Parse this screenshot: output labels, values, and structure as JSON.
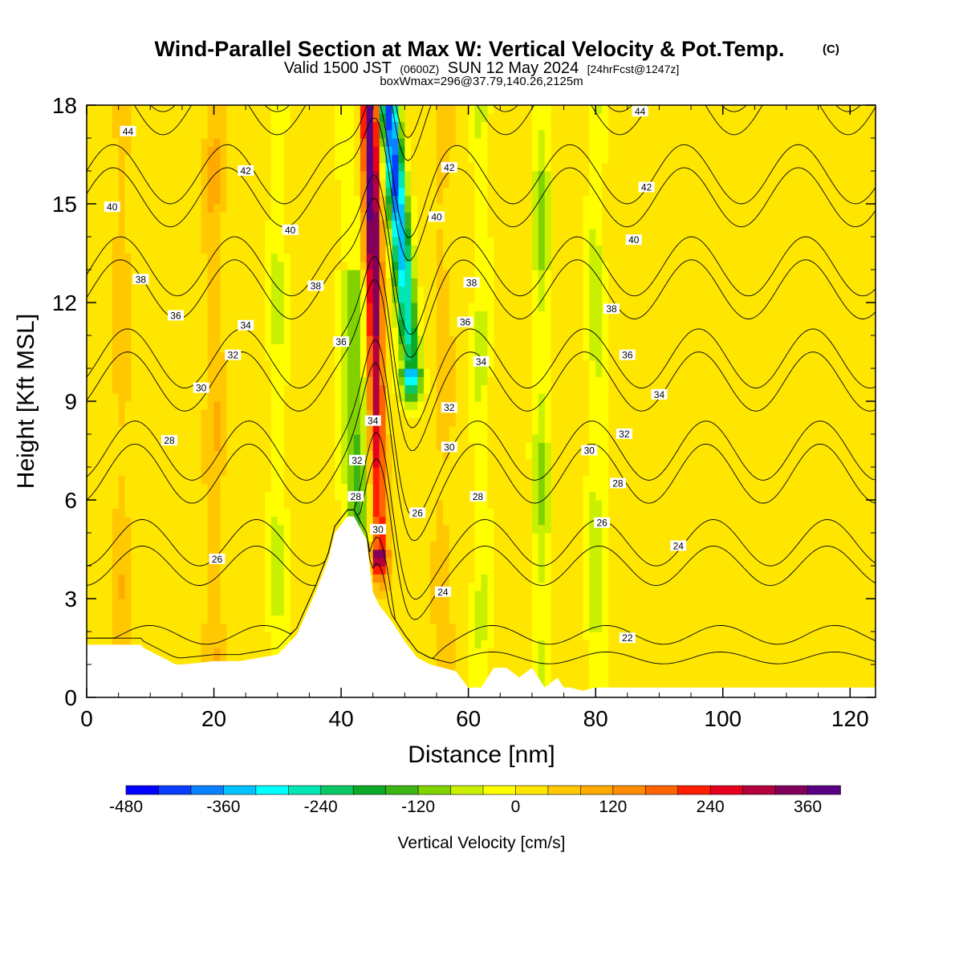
{
  "header": {
    "title": "Wind-Parallel Section at Max W: Vertical Velocity & Pot.Temp.",
    "copyright": "(C)",
    "valid_prefix": "Valid 1500 JST",
    "valid_utc": "(0600Z)",
    "valid_date": "SUN 12 May 2024",
    "forecast": "[24hrFcst@1247z]",
    "box_info": "boxWmax=296@37.79,140.26,2125m"
  },
  "colors": {
    "background": "#ffffff",
    "terrain": "#ffffff",
    "contour": "#000000",
    "colorbar": [
      "#0000ff",
      "#0a3cff",
      "#0a82ff",
      "#00c2ff",
      "#00ffff",
      "#00e6b4",
      "#0ac864",
      "#0aaa28",
      "#3cb414",
      "#82d200",
      "#c8f000",
      "#ffff00",
      "#ffe600",
      "#ffc800",
      "#ffaa00",
      "#ff8c00",
      "#ff6400",
      "#ff1e00",
      "#e6001e",
      "#b4003c",
      "#82005a",
      "#5a0082"
    ]
  },
  "chart_data": {
    "type": "heatmap",
    "xlabel": "Distance [nm]",
    "ylabel": "Height [Kft MSL]",
    "xlim": [
      0,
      124
    ],
    "ylim": [
      0,
      18
    ],
    "xticks": [
      0,
      20,
      40,
      60,
      80,
      100,
      120
    ],
    "yticks": [
      0,
      3,
      6,
      9,
      12,
      15,
      18
    ],
    "colorbar": {
      "label": "Vertical Velocity [cm/s]",
      "min": -480,
      "max": 400,
      "step": 40,
      "tick_values": [
        -480,
        -360,
        -240,
        -120,
        0,
        120,
        240,
        360
      ],
      "tick_labels": [
        "-480",
        "-360",
        "-240",
        "-120",
        "0",
        "120",
        "240",
        "360"
      ]
    },
    "vertical_velocity_features": [
      {
        "type": "updraft",
        "center_x": 45.5,
        "x_at_top": 44.5,
        "x_at_base": 46,
        "peak": 390,
        "base_kft": 4.5
      },
      {
        "type": "downdraft",
        "center_x": 48.5,
        "x_at_top": 47.5,
        "x_at_base": 51,
        "peak": -430,
        "base_kft": 10
      },
      {
        "type": "sinking_band",
        "center_x": 71.5,
        "peak": -110
      },
      {
        "type": "sinking_band",
        "center_x": 80,
        "peak": -90
      },
      {
        "type": "sinking_band",
        "center_x": 62,
        "peak": -70
      },
      {
        "type": "sinking_band",
        "center_x": 30,
        "peak": -70
      },
      {
        "type": "rising_band",
        "center_x": 20,
        "peak": 80
      },
      {
        "type": "rising_band",
        "center_x": 5.5,
        "peak": 60
      },
      {
        "type": "rising_band",
        "center_x": 56,
        "peak": 60
      }
    ],
    "terrain_profile": {
      "x": [
        0,
        6,
        8.5,
        9,
        13,
        14,
        15,
        20,
        24,
        30,
        33,
        36,
        38,
        39,
        41,
        42,
        44,
        45,
        46,
        48,
        50,
        52,
        54,
        56,
        58,
        60,
        62,
        64,
        66,
        68,
        70,
        72,
        74,
        75,
        76,
        78,
        80,
        82,
        124
      ],
      "height_kft": [
        1.6,
        1.6,
        1.6,
        1.5,
        1.1,
        1.0,
        1.0,
        1.1,
        1.1,
        1.3,
        1.9,
        3.2,
        4.2,
        5.0,
        5.5,
        5.5,
        4.8,
        3.2,
        2.8,
        2.3,
        1.7,
        1.2,
        1.0,
        0.9,
        0.8,
        0.3,
        0.3,
        0.9,
        0.9,
        0.6,
        0.9,
        0.3,
        0.6,
        0.3,
        0.3,
        0.2,
        0.3,
        0.3,
        0.3
      ]
    },
    "potential_temperature_contours": {
      "levels": [
        22,
        24,
        26,
        28,
        30,
        32,
        34,
        36,
        38,
        40,
        42,
        44
      ],
      "labels": [
        {
          "text": "44",
          "x": 6.5,
          "y": 17.2
        },
        {
          "text": "42",
          "x": 25,
          "y": 16.0
        },
        {
          "text": "40",
          "x": 4,
          "y": 14.9
        },
        {
          "text": "40",
          "x": 32,
          "y": 14.2
        },
        {
          "text": "38",
          "x": 8.5,
          "y": 12.7
        },
        {
          "text": "38",
          "x": 36,
          "y": 12.5
        },
        {
          "text": "36",
          "x": 14,
          "y": 11.6
        },
        {
          "text": "34",
          "x": 25,
          "y": 11.3
        },
        {
          "text": "32",
          "x": 23,
          "y": 10.4
        },
        {
          "text": "36",
          "x": 40,
          "y": 10.8
        },
        {
          "text": "30",
          "x": 18,
          "y": 9.4
        },
        {
          "text": "34",
          "x": 45,
          "y": 8.4
        },
        {
          "text": "28",
          "x": 13,
          "y": 7.8
        },
        {
          "text": "32",
          "x": 42.5,
          "y": 7.2
        },
        {
          "text": "28",
          "x": 42.3,
          "y": 6.1
        },
        {
          "text": "30",
          "x": 45.8,
          "y": 5.1
        },
        {
          "text": "26",
          "x": 20.5,
          "y": 4.2
        },
        {
          "text": "42",
          "x": 57,
          "y": 16.1
        },
        {
          "text": "40",
          "x": 55,
          "y": 14.6
        },
        {
          "text": "38",
          "x": 60.5,
          "y": 12.6
        },
        {
          "text": "36",
          "x": 59.5,
          "y": 11.4
        },
        {
          "text": "34",
          "x": 62,
          "y": 10.2
        },
        {
          "text": "32",
          "x": 57,
          "y": 8.8
        },
        {
          "text": "30",
          "x": 57,
          "y": 7.6
        },
        {
          "text": "28",
          "x": 61.5,
          "y": 6.1
        },
        {
          "text": "26",
          "x": 52,
          "y": 5.6
        },
        {
          "text": "24",
          "x": 56,
          "y": 3.2
        },
        {
          "text": "44",
          "x": 87,
          "y": 17.8
        },
        {
          "text": "42",
          "x": 88,
          "y": 15.5
        },
        {
          "text": "40",
          "x": 86,
          "y": 13.9
        },
        {
          "text": "38",
          "x": 82.5,
          "y": 11.8
        },
        {
          "text": "36",
          "x": 85,
          "y": 10.4
        },
        {
          "text": "34",
          "x": 90,
          "y": 9.2
        },
        {
          "text": "32",
          "x": 84.5,
          "y": 8.0
        },
        {
          "text": "30",
          "x": 79,
          "y": 7.5
        },
        {
          "text": "28",
          "x": 83.5,
          "y": 6.5
        },
        {
          "text": "26",
          "x": 81,
          "y": 5.3
        },
        {
          "text": "24",
          "x": 93,
          "y": 4.6
        },
        {
          "text": "22",
          "x": 85,
          "y": 1.8
        }
      ]
    }
  }
}
